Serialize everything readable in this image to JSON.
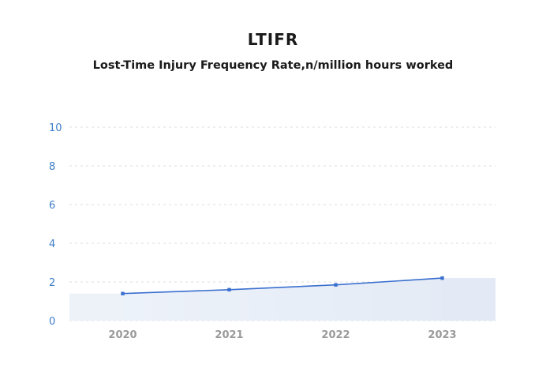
{
  "title": "LTIFR",
  "subtitle": "Lost-Time Injury Frequency Rate,n/million hours worked",
  "colors": {
    "line": "#3a6fcf",
    "area": "#e8eef7",
    "grid": "#dddddd",
    "ytick": "#3d7dc8",
    "xtick": "#9a9a9a"
  },
  "chart_data": {
    "type": "line",
    "categories": [
      "2020",
      "2021",
      "2022",
      "2023"
    ],
    "values": [
      1.4,
      1.6,
      1.85,
      2.2
    ],
    "ylim": [
      0,
      10
    ],
    "yticks": [
      "0",
      "2",
      "4",
      "6",
      "8",
      "10"
    ],
    "grid": true,
    "grid_style": "dashed-horizontal"
  }
}
